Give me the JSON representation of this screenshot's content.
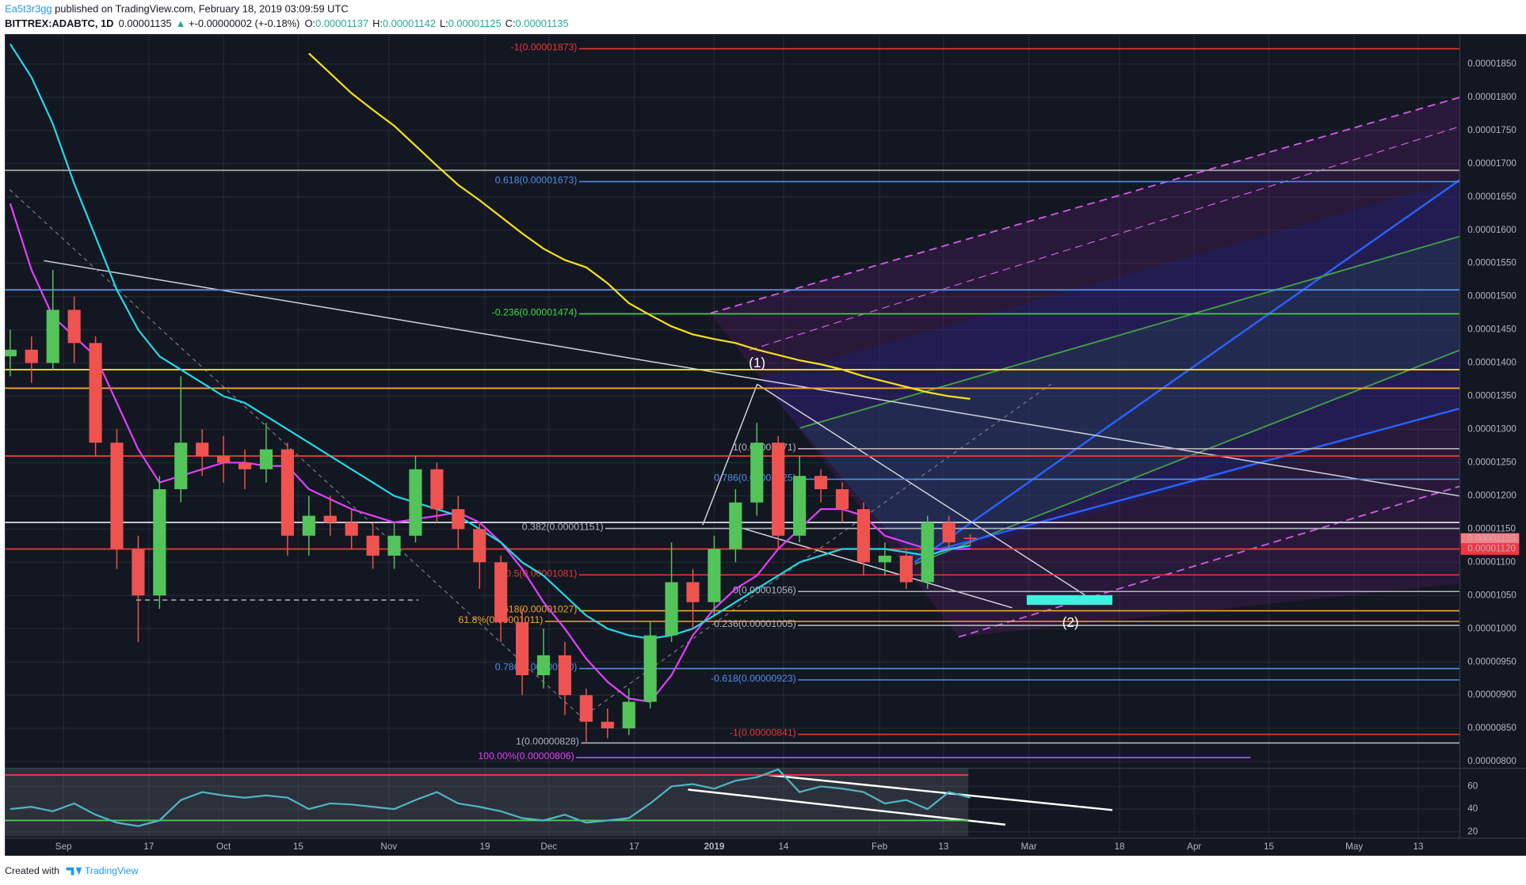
{
  "header": {
    "author": "Ea5t3r3gg",
    "published": " published on TradingView.com, February 18, 2019 03:09:59 UTC",
    "symbol": "BITTREX:ADABTC, 1D",
    "last": "0.00001135",
    "arrow": "▲",
    "change": "+-0.00000002 (+-0.18%)",
    "ohlc": [
      {
        "label": "O:",
        "value": "0.00001137"
      },
      {
        "label": "H:",
        "value": "0.00001142"
      },
      {
        "label": "L:",
        "value": "0.00001125"
      },
      {
        "label": "C:",
        "value": "0.00001135"
      }
    ]
  },
  "chart_data": {
    "type": "candlestick",
    "x": [
      -10,
      -6,
      -2,
      2,
      6,
      10,
      14,
      18,
      22,
      26,
      30,
      34,
      38,
      42,
      46,
      50,
      54,
      58,
      62,
      66,
      70,
      74,
      78,
      82,
      86,
      90,
      94,
      98,
      102,
      106,
      110,
      114,
      118,
      122,
      126,
      130,
      134,
      138,
      142,
      146,
      150,
      154,
      158,
      162,
      166,
      170
    ],
    "open": [
      1.41e-05,
      1.42e-05,
      1.4e-05,
      1.48e-05,
      1.43e-05,
      1.28e-05,
      1.12e-05,
      1.05e-05,
      1.21e-05,
      1.28e-05,
      1.26e-05,
      1.25e-05,
      1.24e-05,
      1.27e-05,
      1.14e-05,
      1.17e-05,
      1.16e-05,
      1.14e-05,
      1.11e-05,
      1.14e-05,
      1.24e-05,
      1.18e-05,
      1.15e-05,
      1.1e-05,
      1.01e-05,
      9.3e-06,
      9.6e-06,
      9e-06,
      8.6e-06,
      8.5e-06,
      8.9e-06,
      9.9e-06,
      1.07e-05,
      1.04e-05,
      1.12e-05,
      1.19e-05,
      1.28e-05,
      1.14e-05,
      1.23e-05,
      1.21e-05,
      1.18e-05,
      1.1e-05,
      1.11e-05,
      1.07e-05,
      1.16e-05,
      1.137e-05
    ],
    "high": [
      1.45e-05,
      1.44e-05,
      1.54e-05,
      1.5e-05,
      1.44e-05,
      1.3e-05,
      1.14e-05,
      1.23e-05,
      1.38e-05,
      1.3e-05,
      1.29e-05,
      1.27e-05,
      1.31e-05,
      1.28e-05,
      1.2e-05,
      1.2e-05,
      1.18e-05,
      1.16e-05,
      1.16e-05,
      1.26e-05,
      1.25e-05,
      1.2e-05,
      1.16e-05,
      1.11e-05,
      1.03e-05,
      1e-05,
      9.8e-06,
      9.1e-06,
      8.8e-06,
      9.1e-06,
      1.01e-05,
      1.13e-05,
      1.09e-05,
      1.14e-05,
      1.21e-05,
      1.31e-05,
      1.29e-05,
      1.26e-05,
      1.24e-05,
      1.22e-05,
      1.19e-05,
      1.13e-05,
      1.12e-05,
      1.17e-05,
      1.17e-05,
      1.142e-05
    ],
    "low": [
      1.38e-05,
      1.37e-05,
      1.39e-05,
      1.4e-05,
      1.26e-05,
      1.09e-05,
      9.8e-06,
      1.03e-05,
      1.19e-05,
      1.23e-05,
      1.22e-05,
      1.21e-05,
      1.22e-05,
      1.11e-05,
      1.11e-05,
      1.14e-05,
      1.12e-05,
      1.09e-05,
      1.09e-05,
      1.13e-05,
      1.16e-05,
      1.12e-05,
      1.06e-05,
      9.8e-06,
      9e-06,
      9.1e-06,
      8.7e-06,
      8.3e-06,
      8.35e-06,
      8.4e-06,
      8.8e-06,
      9.8e-06,
      1e-05,
      1.02e-05,
      1.1e-05,
      1.17e-05,
      1.12e-05,
      1.13e-05,
      1.19e-05,
      1.16e-05,
      1.08e-05,
      1.08e-05,
      1.06e-05,
      1.06e-05,
      1.12e-05,
      1.125e-05
    ],
    "close": [
      1.42e-05,
      1.4e-05,
      1.48e-05,
      1.43e-05,
      1.28e-05,
      1.12e-05,
      1.05e-05,
      1.21e-05,
      1.28e-05,
      1.26e-05,
      1.25e-05,
      1.24e-05,
      1.27e-05,
      1.14e-05,
      1.17e-05,
      1.16e-05,
      1.14e-05,
      1.11e-05,
      1.14e-05,
      1.24e-05,
      1.18e-05,
      1.15e-05,
      1.1e-05,
      1.01e-05,
      9.3e-06,
      9.6e-06,
      9e-06,
      8.6e-06,
      8.5e-06,
      8.9e-06,
      9.9e-06,
      1.07e-05,
      1.04e-05,
      1.12e-05,
      1.19e-05,
      1.28e-05,
      1.14e-05,
      1.23e-05,
      1.21e-05,
      1.18e-05,
      1.1e-05,
      1.11e-05,
      1.07e-05,
      1.16e-05,
      1.13e-05,
      1.135e-05
    ],
    "up_color": "#53c45a",
    "down_color": "#ef5350",
    "moving_averages": [
      {
        "color": "#e040fb",
        "values": [
          1.64e-05,
          1.54e-05,
          1.47e-05,
          1.44e-05,
          1.41e-05,
          1.34e-05,
          1.27e-05,
          1.22e-05,
          1.23e-05,
          1.24e-05,
          1.25e-05,
          1.25e-05,
          1.245e-05,
          1.245e-05,
          1.21e-05,
          1.195e-05,
          1.18e-05,
          1.17e-05,
          1.16e-05,
          1.165e-05,
          1.17e-05,
          1.175e-05,
          1.16e-05,
          1.13e-05,
          1.09e-05,
          1.04e-05,
          1e-05,
          9.55e-06,
          9.2e-06,
          8.95e-06,
          8.9e-06,
          9.3e-06,
          9.9e-06,
          1.03e-05,
          1.06e-05,
          1.08e-05,
          1.12e-05,
          1.15e-05,
          1.18e-05,
          1.18e-05,
          1.17e-05,
          1.14e-05,
          1.13e-05,
          1.12e-05,
          1.12e-05,
          1.12e-05
        ]
      },
      {
        "color": "#26d7e6",
        "values": [
          1.88e-05,
          1.83e-05,
          1.76e-05,
          1.67e-05,
          1.59e-05,
          1.51e-05,
          1.45e-05,
          1.41e-05,
          1.39e-05,
          1.37e-05,
          1.35e-05,
          1.34e-05,
          1.32e-05,
          1.3e-05,
          1.28e-05,
          1.26e-05,
          1.24e-05,
          1.22e-05,
          1.2e-05,
          1.19e-05,
          1.18e-05,
          1.17e-05,
          1.15e-05,
          1.13e-05,
          1.1e-05,
          1.08e-05,
          1.05e-05,
          1.02e-05,
          1e-05,
          9.9e-06,
          9.85e-06,
          9.9e-06,
          1e-05,
          1.02e-05,
          1.04e-05,
          1.06e-05,
          1.08e-05,
          1.1e-05,
          1.11e-05,
          1.12e-05,
          1.12e-05,
          1.12e-05,
          1.115e-05,
          1.11e-05,
          1.12e-05,
          1.125e-05
        ]
      },
      {
        "color": "#f7e01c",
        "values": [
          null,
          null,
          null,
          null,
          null,
          null,
          null,
          null,
          null,
          null,
          null,
          null,
          null,
          null,
          1.866e-05,
          1.836e-05,
          1.806e-05,
          1.781e-05,
          1.757e-05,
          1.727e-05,
          1.697e-05,
          1.668e-05,
          1.645e-05,
          1.62e-05,
          1.595e-05,
          1.572e-05,
          1.555e-05,
          1.544e-05,
          1.52e-05,
          1.49e-05,
          1.472e-05,
          1.455e-05,
          1.443e-05,
          1.436e-05,
          1.43e-05,
          1.42e-05,
          1.412e-05,
          1.404e-05,
          1.398e-05,
          1.39e-05,
          1.38e-05,
          1.372e-05,
          1.364e-05,
          1.356e-05,
          1.35e-05,
          1.346e-05
        ]
      }
    ],
    "xlim": [
      -11,
      261.8
    ],
    "xticks": [
      {
        "value": 0,
        "label": "Sep"
      },
      {
        "value": 16,
        "label": "17"
      },
      {
        "value": 30,
        "label": "Oct"
      },
      {
        "value": 44,
        "label": "15"
      },
      {
        "value": 61,
        "label": "Nov"
      },
      {
        "value": 79,
        "label": "19"
      },
      {
        "value": 91,
        "label": "Dec"
      },
      {
        "value": 107,
        "label": "17"
      },
      {
        "value": 122,
        "label": "2019"
      },
      {
        "value": 135,
        "label": "14"
      },
      {
        "value": 153,
        "label": "Feb"
      },
      {
        "value": 165,
        "label": "13"
      },
      {
        "value": 181,
        "label": "Mar"
      },
      {
        "value": 198,
        "label": "18"
      },
      {
        "value": 212,
        "label": "Apr"
      },
      {
        "value": 226,
        "label": "15"
      },
      {
        "value": 242,
        "label": "May"
      },
      {
        "value": 254,
        "label": "13"
      }
    ],
    "ylim": [
      7.9e-06,
      1.895e-05
    ],
    "yticks": [
      {
        "value": 1.85e-05,
        "label": "0.00001850"
      },
      {
        "value": 1.8e-05,
        "label": "0.00001800"
      },
      {
        "value": 1.75e-05,
        "label": "0.00001750"
      },
      {
        "value": 1.7e-05,
        "label": "0.00001700"
      },
      {
        "value": 1.65e-05,
        "label": "0.00001650"
      },
      {
        "value": 1.6e-05,
        "label": "0.00001600"
      },
      {
        "value": 1.55e-05,
        "label": "0.00001550"
      },
      {
        "value": 1.5e-05,
        "label": "0.00001500"
      },
      {
        "value": 1.45e-05,
        "label": "0.00001450"
      },
      {
        "value": 1.4e-05,
        "label": "0.00001400"
      },
      {
        "value": 1.35e-05,
        "label": "0.00001350"
      },
      {
        "value": 1.3e-05,
        "label": "0.00001300"
      },
      {
        "value": 1.25e-05,
        "label": "0.00001250"
      },
      {
        "value": 1.2e-05,
        "label": "0.00001200"
      },
      {
        "value": 1.15e-05,
        "label": "0.00001150"
      },
      {
        "value": 1.1e-05,
        "label": "0.00001100"
      },
      {
        "value": 1.05e-05,
        "label": "0.00001050"
      },
      {
        "value": 1e-05,
        "label": "0.00001000"
      },
      {
        "value": 9.5e-06,
        "label": "0.00000950"
      },
      {
        "value": 9e-06,
        "label": "0.00000900"
      },
      {
        "value": 8.5e-06,
        "label": "0.00000850"
      },
      {
        "value": 8e-06,
        "label": "0.00000800"
      }
    ],
    "grid": true,
    "levels": [
      {
        "label": "-1(0.00001873)",
        "value": 1.873e-05,
        "color": "#e53935"
      },
      {
        "label": "0.618(0.00001673)",
        "value": 1.673e-05,
        "color": "#4f8fe6"
      },
      {
        "label": "-0.236(0.00001474)",
        "value": 1.474e-05,
        "color": "#3ddc3d"
      },
      {
        "label": "1(0.00001271)",
        "value": 1.271e-05,
        "color": "#b2b5be"
      },
      {
        "label": "0.786(0.00001225)",
        "value": 1.225e-05,
        "color": "#4f8fe6"
      },
      {
        "label": "0.382(0.00001151)",
        "value": 1.151e-05,
        "color": "#b2b5be"
      },
      {
        "label": "0(0.00001056)",
        "value": 1.056e-05,
        "color": "#b2b5be"
      },
      {
        "label": "0.5(0.00001081)",
        "value": 1.081e-05,
        "color": "#e53935"
      },
      {
        "label": "0.618(0.00001027)",
        "value": 1.027e-05,
        "color": "#f5a623"
      },
      {
        "label": "61.8%(0.00001011)",
        "value": 1.011e-05,
        "color": "#f5a623"
      },
      {
        "label": "0.236(0.00001005)",
        "value": 1.005e-05,
        "color": "#b2b5be"
      },
      {
        "label": "0.786(0.00000940)",
        "value": 9.4e-06,
        "color": "#4f8fe6"
      },
      {
        "label": "-0.618(0.00000923)",
        "value": 9.23e-06,
        "color": "#4f8fe6"
      },
      {
        "label": "-1(0.00000841)",
        "value": 8.41e-06,
        "color": "#e53935"
      },
      {
        "label": "1(0.00000828)",
        "value": 8.28e-06,
        "color": "#b2b5be"
      },
      {
        "label": "100.00%(0.00000806)",
        "value": 8.06e-06,
        "color": "#e040fb"
      }
    ],
    "horizontal_lines": [
      {
        "value": 1.69e-05,
        "color": "#9e9e9e"
      },
      {
        "value": 1.51e-05,
        "color": "#4f8fe6"
      },
      {
        "value": 1.39e-05,
        "color": "#f7e01c"
      },
      {
        "value": 1.362e-05,
        "color": "#f5a623"
      },
      {
        "value": 1.26e-05,
        "color": "#e53935"
      },
      {
        "value": 1.16e-05,
        "color": "#d1d4dc"
      },
      {
        "value": 1.12e-05,
        "color": "#e53935"
      }
    ],
    "price_labels": [
      {
        "value": 1.135e-05,
        "label": "0.00001135",
        "color": "#f77c80"
      },
      {
        "value": 1.12e-05,
        "label": "0.00001120",
        "color": "#f23645"
      }
    ],
    "annotations": [
      "(1)",
      "(2)"
    ],
    "rsi": {
      "color": "#4fb6c4",
      "values": [
        40,
        42,
        38,
        45,
        35,
        28,
        25,
        30,
        48,
        55,
        52,
        50,
        52,
        50,
        40,
        45,
        44,
        42,
        40,
        48,
        55,
        45,
        42,
        38,
        32,
        30,
        35,
        28,
        30,
        32,
        45,
        60,
        62,
        58,
        65,
        68,
        75,
        55,
        60,
        58,
        55,
        45,
        48,
        40,
        55,
        50
      ],
      "ylim": [
        16,
        76
      ],
      "yticks": [
        60,
        40,
        20
      ],
      "levels": [
        30,
        70
      ]
    }
  },
  "footer": {
    "created": "Created with",
    "brand": "TradingView"
  }
}
